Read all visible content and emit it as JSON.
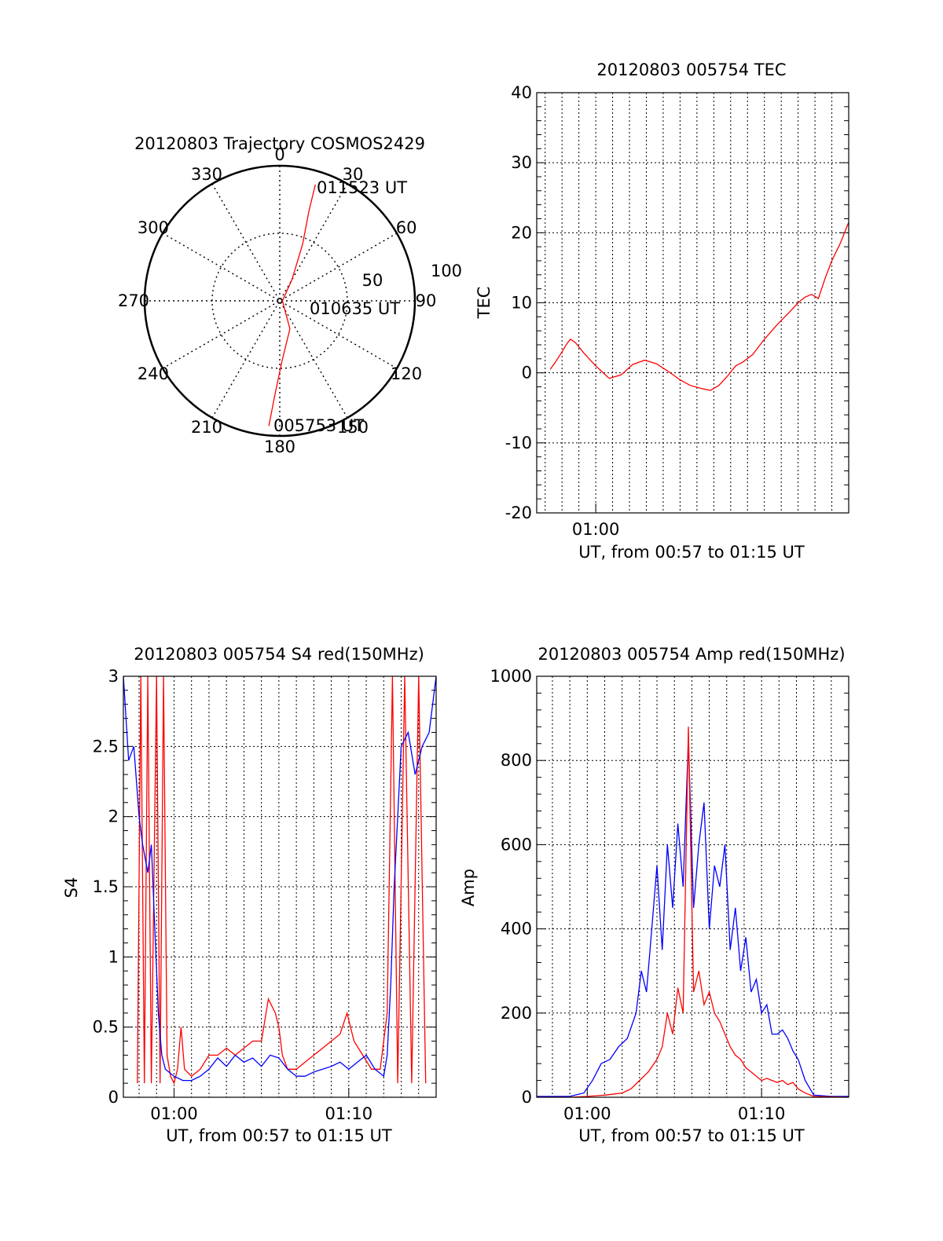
{
  "chart_data": [
    {
      "type": "polar",
      "title": "20120803 Trajectory COSMOS2429",
      "radial_range": [
        0,
        100
      ],
      "radial_ticks": [
        "50",
        "100"
      ],
      "azimuth_labels": [
        "0",
        "30",
        "60",
        "90",
        "120",
        "150",
        "180",
        "210",
        "240",
        "270",
        "300",
        "330"
      ],
      "track": {
        "color": "#ff0000",
        "points": [
          {
            "az": 185,
            "r": 93
          },
          {
            "az": 183,
            "r": 70
          },
          {
            "az": 178,
            "r": 45
          },
          {
            "az": 160,
            "r": 22
          },
          {
            "az": 90,
            "r": 2
          },
          {
            "az": 30,
            "r": 18
          },
          {
            "az": 22,
            "r": 45
          },
          {
            "az": 18,
            "r": 70
          },
          {
            "az": 17,
            "r": 90
          }
        ]
      },
      "annotations": [
        {
          "text": "011523 UT",
          "az": 17,
          "r": 90
        },
        {
          "text": "010635 UT",
          "az": 90,
          "r": 2
        },
        {
          "text": "005753 UT",
          "az": 185,
          "r": 93
        }
      ]
    },
    {
      "type": "line",
      "title": "20120803 005754 TEC",
      "xlabel": "UT, from 00:57 to 01:15 UT",
      "ylabel": "TEC",
      "xlim": [
        56.5,
        75.0
      ],
      "ylim": [
        -20,
        40
      ],
      "yticks": [
        "-20",
        "-10",
        "0",
        "10",
        "20",
        "30",
        "40"
      ],
      "xticks": [
        {
          "t": 60,
          "label": "01:00"
        }
      ],
      "grid": true,
      "series": [
        {
          "color": "#ff0000",
          "x": [
            57.3,
            57.6,
            58.0,
            58.3,
            58.5,
            58.8,
            59.3,
            60.0,
            60.8,
            61.5,
            62.2,
            62.9,
            63.6,
            64.3,
            65.0,
            65.6,
            66.2,
            66.8,
            67.3,
            67.8,
            68.3,
            68.7,
            69.3,
            70.0,
            70.8,
            71.5,
            72.0,
            72.4,
            72.8,
            73.2,
            73.6,
            74.0,
            74.5,
            75.0
          ],
          "y": [
            0.5,
            1.5,
            3.0,
            4.2,
            4.8,
            4.3,
            2.8,
            1.0,
            -0.8,
            -0.3,
            1.2,
            1.8,
            1.3,
            0.2,
            -1.0,
            -1.8,
            -2.2,
            -2.5,
            -1.8,
            -0.5,
            1.0,
            1.5,
            2.6,
            4.8,
            7.0,
            8.7,
            10.0,
            10.8,
            11.2,
            10.6,
            13.5,
            16.0,
            18.5,
            21.5
          ]
        }
      ]
    },
    {
      "type": "line",
      "title": "20120803 005754 S4 red(150MHz)",
      "xlabel": "UT, from 00:57 to 01:15 UT",
      "ylabel": "S4",
      "xlim": [
        57.1,
        75.0
      ],
      "ylim": [
        0,
        3
      ],
      "yticks": [
        "0",
        "0.5",
        "1",
        "1.5",
        "2",
        "2.5",
        "3"
      ],
      "xticks": [
        {
          "t": 60,
          "label": "01:00"
        },
        {
          "t": 70,
          "label": "01:10"
        }
      ],
      "grid": true,
      "series": [
        {
          "color": "#ff0000",
          "x": [
            57.9,
            58.1,
            58.3,
            58.5,
            58.7,
            59.0,
            59.2,
            59.4,
            59.6,
            59.8,
            60.0,
            60.2,
            60.4,
            60.6,
            61.0,
            61.5,
            62.0,
            62.5,
            63.0,
            63.5,
            64.0,
            64.5,
            65.0,
            65.4,
            65.8,
            66.0,
            66.2,
            66.5,
            67.0,
            67.5,
            68.0,
            68.5,
            69.0,
            69.5,
            69.9,
            70.3,
            70.8,
            71.3,
            71.8,
            72.2,
            72.5,
            72.8,
            73.2,
            73.6,
            74.0,
            74.4
          ],
          "y": [
            0.1,
            3.0,
            0.1,
            3.0,
            0.1,
            3.0,
            0.1,
            3.0,
            0.3,
            0.15,
            0.1,
            0.2,
            0.5,
            0.2,
            0.15,
            0.2,
            0.3,
            0.3,
            0.35,
            0.3,
            0.35,
            0.4,
            0.4,
            0.7,
            0.6,
            0.5,
            0.3,
            0.2,
            0.2,
            0.25,
            0.3,
            0.35,
            0.4,
            0.45,
            0.6,
            0.4,
            0.3,
            0.2,
            0.2,
            0.6,
            3.0,
            0.1,
            3.0,
            0.1,
            3.0,
            0.1
          ]
        },
        {
          "color": "#0000ff",
          "x": [
            57.1,
            57.4,
            57.7,
            58.0,
            58.2,
            58.5,
            58.7,
            58.9,
            59.1,
            59.3,
            59.5,
            60.0,
            60.5,
            61.0,
            61.5,
            62.0,
            62.5,
            63.0,
            63.5,
            64.0,
            64.5,
            65.0,
            65.5,
            66.0,
            66.5,
            67.0,
            67.5,
            68.0,
            68.5,
            69.0,
            69.5,
            70.0,
            70.5,
            71.0,
            71.5,
            72.0,
            72.2,
            72.4,
            72.6,
            72.8,
            73.0,
            73.4,
            73.8,
            74.2,
            74.6,
            75.0
          ],
          "y": [
            3.0,
            2.4,
            2.5,
            2.0,
            1.8,
            1.6,
            1.8,
            1.2,
            0.6,
            0.3,
            0.2,
            0.15,
            0.12,
            0.12,
            0.15,
            0.2,
            0.28,
            0.22,
            0.3,
            0.25,
            0.28,
            0.22,
            0.3,
            0.28,
            0.2,
            0.15,
            0.15,
            0.18,
            0.2,
            0.22,
            0.25,
            0.2,
            0.25,
            0.3,
            0.2,
            0.15,
            0.3,
            0.8,
            1.5,
            2.0,
            2.5,
            2.6,
            2.3,
            2.5,
            2.6,
            3.0
          ]
        }
      ]
    },
    {
      "type": "line",
      "title": "20120803 005754 Amp red(150MHz)",
      "xlabel": "UT, from 00:57 to 01:15 UT",
      "ylabel": "Amp",
      "xlim": [
        57.1,
        75.0
      ],
      "ylim": [
        0,
        1000
      ],
      "yticks": [
        "0",
        "200",
        "400",
        "600",
        "800",
        "1000"
      ],
      "xticks": [
        {
          "t": 60,
          "label": "01:00"
        },
        {
          "t": 70,
          "label": "01:10"
        }
      ],
      "grid": true,
      "series": [
        {
          "color": "#0000ff",
          "x": [
            57.1,
            58.0,
            59.0,
            59.8,
            60.3,
            60.8,
            61.3,
            61.8,
            62.3,
            62.8,
            63.1,
            63.4,
            63.7,
            64.0,
            64.3,
            64.6,
            64.9,
            65.2,
            65.5,
            65.8,
            66.1,
            66.4,
            66.7,
            67.0,
            67.3,
            67.6,
            67.9,
            68.2,
            68.5,
            68.8,
            69.1,
            69.4,
            69.7,
            70.0,
            70.3,
            70.6,
            70.9,
            71.2,
            71.5,
            71.8,
            72.1,
            72.5,
            73.0,
            74.0,
            75.0
          ],
          "y": [
            2,
            2,
            2,
            10,
            40,
            80,
            90,
            120,
            140,
            200,
            300,
            250,
            400,
            550,
            350,
            600,
            450,
            650,
            500,
            850,
            450,
            600,
            700,
            400,
            550,
            500,
            600,
            350,
            450,
            300,
            380,
            250,
            280,
            200,
            220,
            150,
            150,
            160,
            140,
            110,
            90,
            40,
            5,
            2,
            2
          ]
        },
        {
          "color": "#ff0000",
          "x": [
            57.1,
            59.0,
            60.0,
            61.0,
            62.0,
            62.5,
            63.0,
            63.5,
            64.0,
            64.3,
            64.6,
            64.9,
            65.2,
            65.5,
            65.8,
            66.1,
            66.4,
            66.7,
            67.0,
            67.3,
            67.6,
            67.9,
            68.2,
            68.5,
            68.8,
            69.1,
            69.4,
            69.7,
            70.0,
            70.3,
            70.6,
            70.9,
            71.2,
            71.5,
            71.8,
            72.1,
            72.5,
            73.0,
            75.0
          ],
          "y": [
            0,
            0,
            2,
            5,
            10,
            20,
            40,
            60,
            90,
            120,
            200,
            150,
            260,
            200,
            880,
            250,
            300,
            220,
            250,
            200,
            180,
            150,
            120,
            100,
            90,
            70,
            60,
            50,
            40,
            45,
            40,
            35,
            40,
            30,
            35,
            20,
            10,
            2,
            0
          ]
        }
      ]
    }
  ]
}
